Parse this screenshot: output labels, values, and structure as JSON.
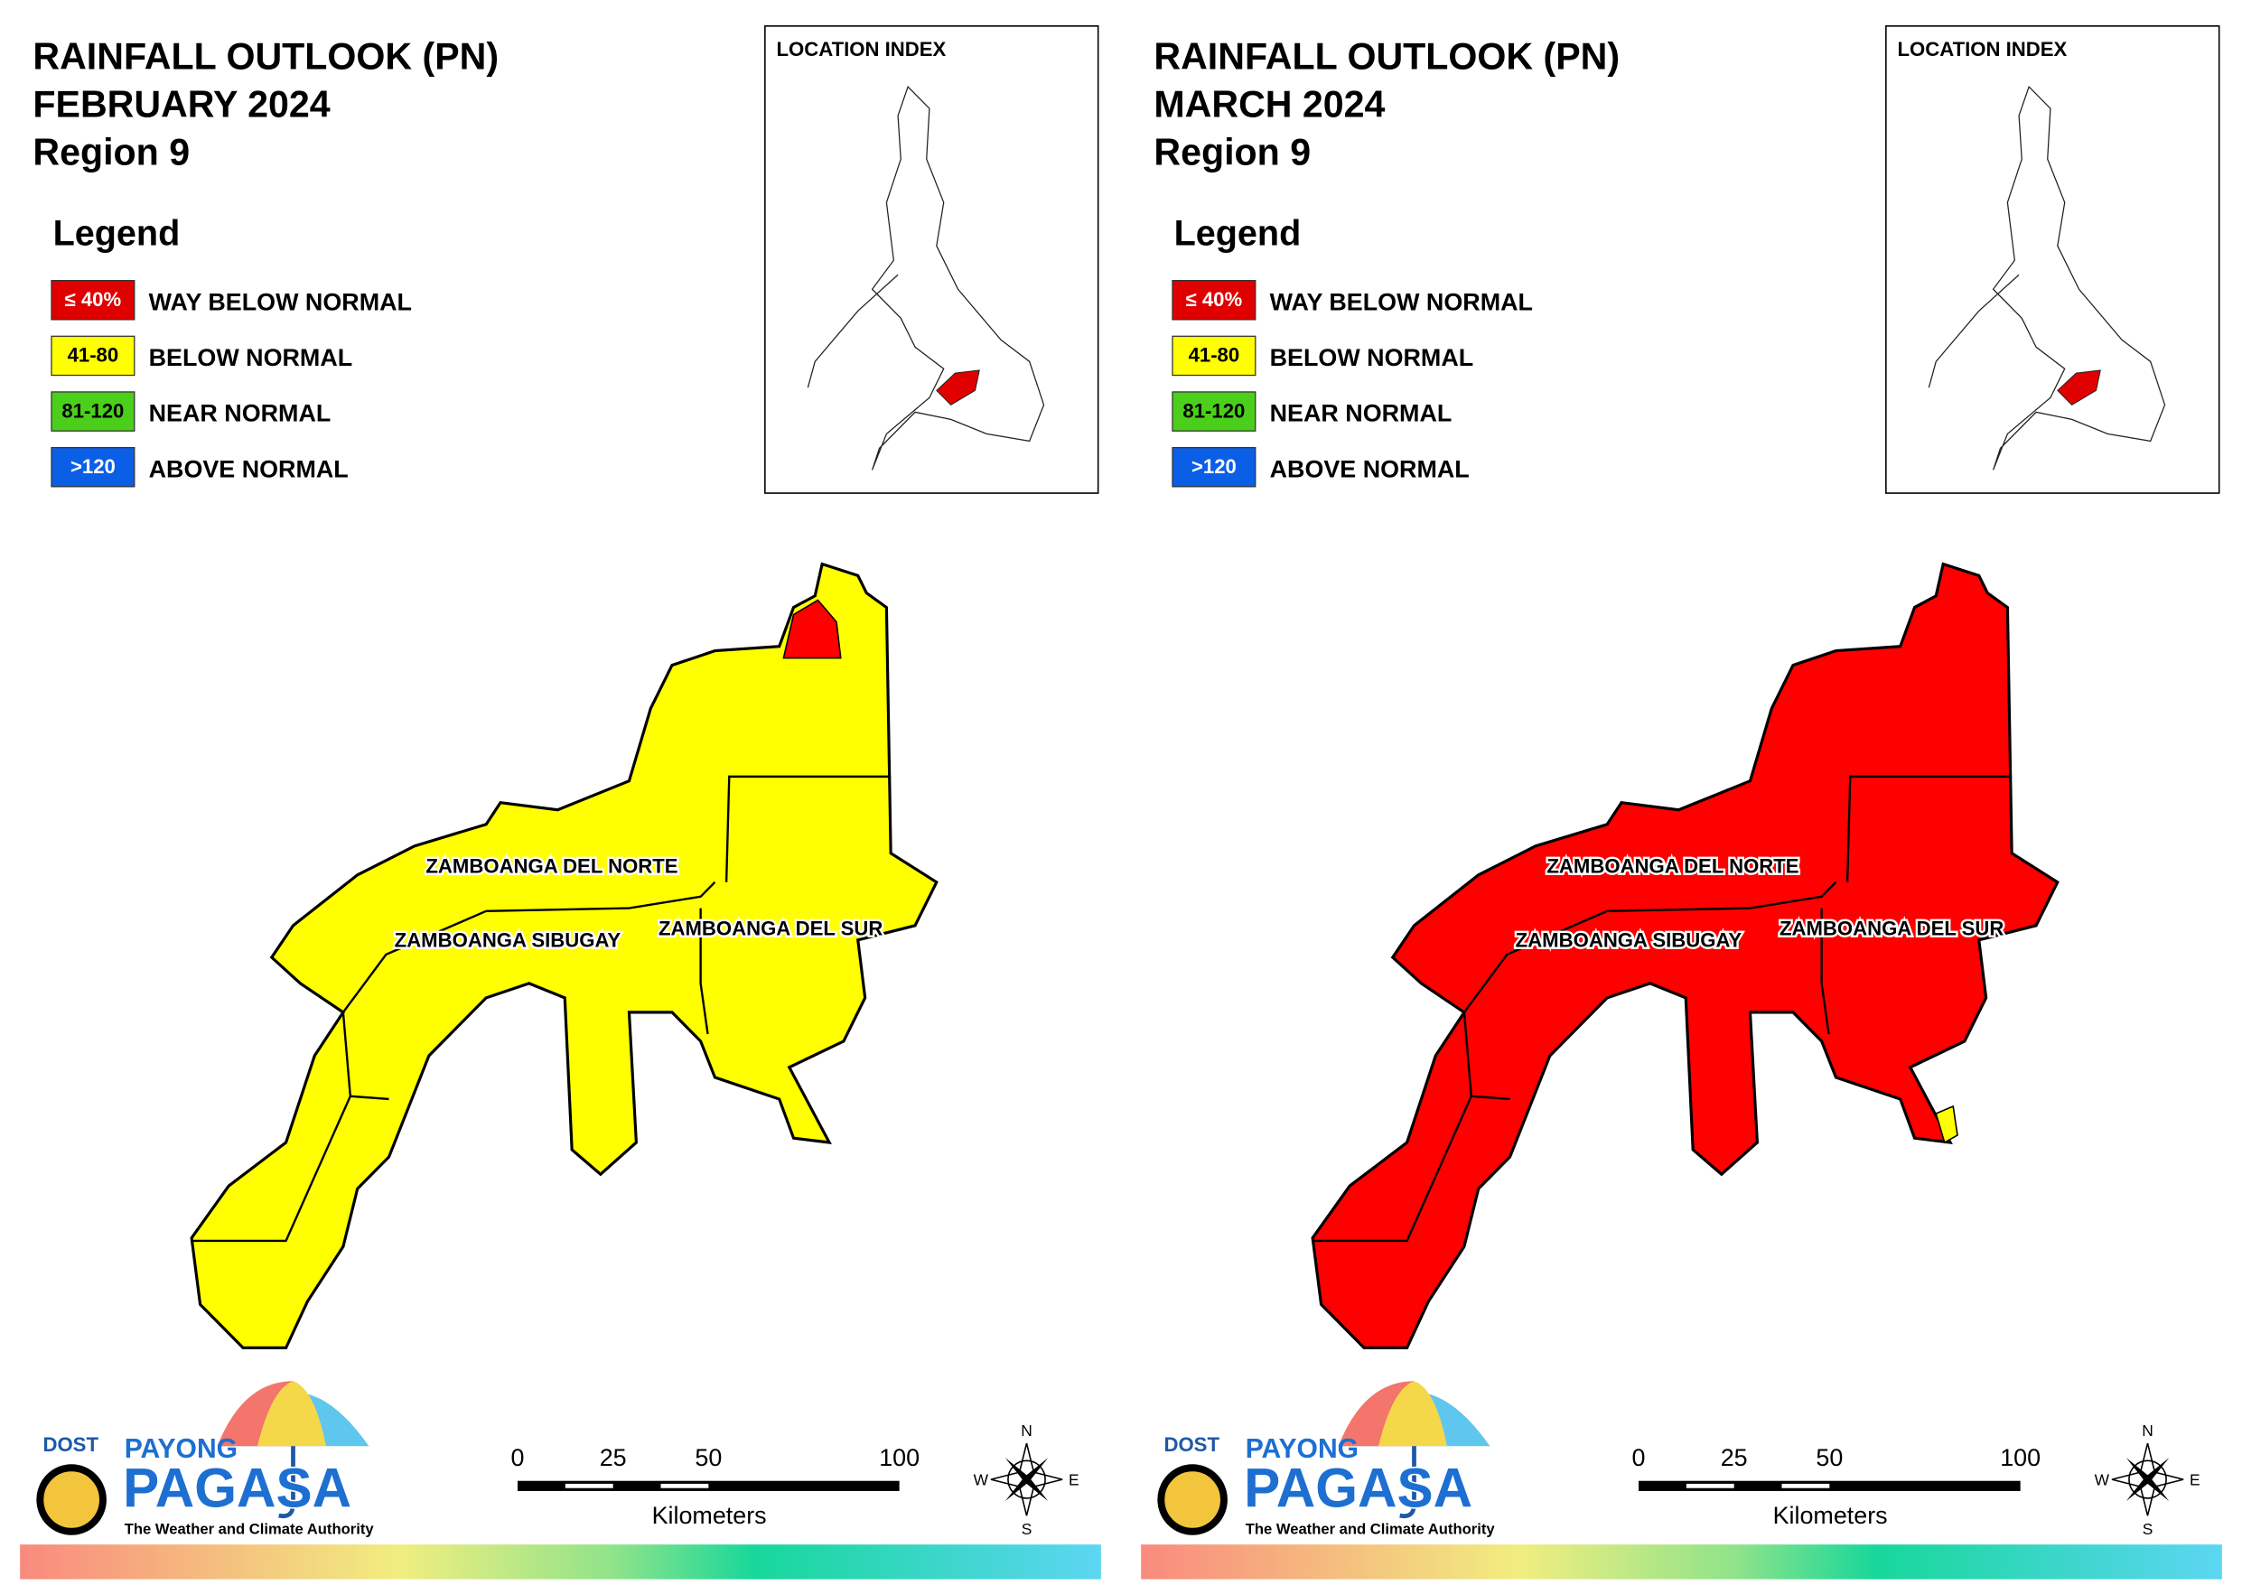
{
  "panels": [
    {
      "title_line1": "RAINFALL OUTLOOK (PN)",
      "title_line2": "FEBRUARY 2024",
      "title_line3": "Region 9",
      "legend": {
        "title": "Legend",
        "items": [
          {
            "swatch": "≤ 40%",
            "label": "WAY BELOW NORMAL",
            "color": "#e00000",
            "text_color": "#ffffff"
          },
          {
            "swatch": "41-80",
            "label": "BELOW NORMAL",
            "color": "#ffff00",
            "text_color": "#000000"
          },
          {
            "swatch": "81-120",
            "label": "NEAR NORMAL",
            "color": "#4ccf1a",
            "text_color": "#000000"
          },
          {
            "swatch": ">120",
            "label": "ABOVE NORMAL",
            "color": "#0a5fe6",
            "text_color": "#ffffff"
          }
        ]
      },
      "location_index": "LOCATION INDEX",
      "provinces": [
        "ZAMBOANGA DEL NORTE",
        "ZAMBOANGA SIBUGAY",
        "ZAMBOANGA DEL SUR"
      ],
      "map_fill": "#ffff00",
      "patch_fill": "#ff0000",
      "scale_bar": {
        "ticks": [
          0,
          25,
          50,
          100
        ],
        "unit": "Kilometers"
      },
      "compass": {
        "n": "N",
        "e": "E",
        "s": "S",
        "w": "W"
      },
      "logo": {
        "dost": "DOST",
        "payong": "PAYONG",
        "pagasa": "PAGASA",
        "tagline": "The Weather and Climate Authority"
      }
    },
    {
      "title_line1": "RAINFALL OUTLOOK (PN)",
      "title_line2": "MARCH 2024",
      "title_line3": "Region 9",
      "legend": {
        "title": "Legend",
        "items": [
          {
            "swatch": "≤ 40%",
            "label": "WAY BELOW NORMAL",
            "color": "#e00000",
            "text_color": "#ffffff"
          },
          {
            "swatch": "41-80",
            "label": "BELOW NORMAL",
            "color": "#ffff00",
            "text_color": "#000000"
          },
          {
            "swatch": "81-120",
            "label": "NEAR NORMAL",
            "color": "#4ccf1a",
            "text_color": "#000000"
          },
          {
            "swatch": ">120",
            "label": "ABOVE NORMAL",
            "color": "#0a5fe6",
            "text_color": "#ffffff"
          }
        ]
      },
      "location_index": "LOCATION INDEX",
      "provinces": [
        "ZAMBOANGA DEL NORTE",
        "ZAMBOANGA SIBUGAY",
        "ZAMBOANGA DEL SUR"
      ],
      "map_fill": "#ff0000",
      "patch_fill": "#ffff00",
      "scale_bar": {
        "ticks": [
          0,
          25,
          50,
          100
        ],
        "unit": "Kilometers"
      },
      "compass": {
        "n": "N",
        "e": "E",
        "s": "S",
        "w": "W"
      },
      "logo": {
        "dost": "DOST",
        "payong": "PAYONG",
        "pagasa": "PAGASA",
        "tagline": "The Weather and Climate Authority"
      }
    }
  ]
}
